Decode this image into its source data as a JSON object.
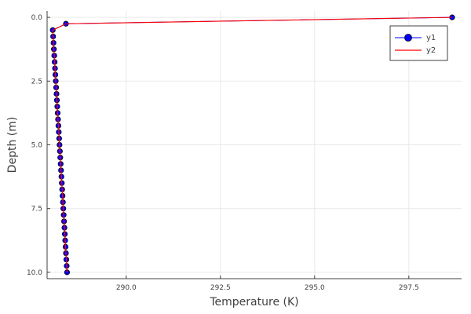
{
  "chart_data": {
    "type": "line",
    "xlabel": "Temperature (K)",
    "ylabel": "Depth (m)",
    "xlim": [
      287.9,
      298.9
    ],
    "ylim": [
      10.25,
      -0.25
    ],
    "x_ticks": [
      290.0,
      292.5,
      295.0,
      297.5
    ],
    "x_tick_labels": [
      "290.0",
      "292.5",
      "295.0",
      "297.5"
    ],
    "y_ticks": [
      0.0,
      2.5,
      5.0,
      7.5,
      10.0
    ],
    "y_tick_labels": [
      "0.0",
      "2.5",
      "5.0",
      "7.5",
      "10.0"
    ],
    "grid": true,
    "legend_position": "top-right",
    "series": [
      {
        "name": "y1",
        "style": "line+markers",
        "color": "#0000ff",
        "marker_color": "#0000ff",
        "x": [
          298.65,
          288.4,
          288.05,
          288.06,
          288.07,
          288.08,
          288.09,
          288.1,
          288.11,
          288.12,
          288.13,
          288.14,
          288.15,
          288.16,
          288.17,
          288.18,
          288.19,
          288.2,
          288.21,
          288.22,
          288.23,
          288.24,
          288.25,
          288.26,
          288.27,
          288.28,
          288.29,
          288.3,
          288.31,
          288.32,
          288.33,
          288.34,
          288.35,
          288.36,
          288.37,
          288.38,
          288.39,
          288.4,
          288.41,
          288.42,
          288.43
        ],
        "y": [
          0.0,
          0.25,
          0.5,
          0.75,
          1.0,
          1.25,
          1.5,
          1.75,
          2.0,
          2.25,
          2.5,
          2.75,
          3.0,
          3.25,
          3.5,
          3.75,
          4.0,
          4.25,
          4.5,
          4.75,
          5.0,
          5.25,
          5.5,
          5.75,
          6.0,
          6.25,
          6.5,
          6.75,
          7.0,
          7.25,
          7.5,
          7.75,
          8.0,
          8.25,
          8.5,
          8.75,
          9.0,
          9.25,
          9.5,
          9.75,
          10.0
        ]
      },
      {
        "name": "y2",
        "style": "line",
        "color": "#ff0000",
        "x": [
          298.65,
          288.4,
          288.05,
          288.06,
          288.07,
          288.08,
          288.09,
          288.1,
          288.11,
          288.12,
          288.13,
          288.14,
          288.15,
          288.16,
          288.17,
          288.18,
          288.19,
          288.2,
          288.21,
          288.22,
          288.23,
          288.24,
          288.25,
          288.26,
          288.27,
          288.28,
          288.29,
          288.3,
          288.31,
          288.32,
          288.33,
          288.34,
          288.35,
          288.36,
          288.37,
          288.38,
          288.39,
          288.4,
          288.41,
          288.42,
          288.43
        ],
        "y": [
          0.0,
          0.25,
          0.5,
          0.75,
          1.0,
          1.25,
          1.5,
          1.75,
          2.0,
          2.25,
          2.5,
          2.75,
          3.0,
          3.25,
          3.5,
          3.75,
          4.0,
          4.25,
          4.5,
          4.75,
          5.0,
          5.25,
          5.5,
          5.75,
          6.0,
          6.25,
          6.5,
          6.75,
          7.0,
          7.25,
          7.5,
          7.75,
          8.0,
          8.25,
          8.5,
          8.75,
          9.0,
          9.25,
          9.5,
          9.75,
          10.0
        ]
      }
    ]
  }
}
